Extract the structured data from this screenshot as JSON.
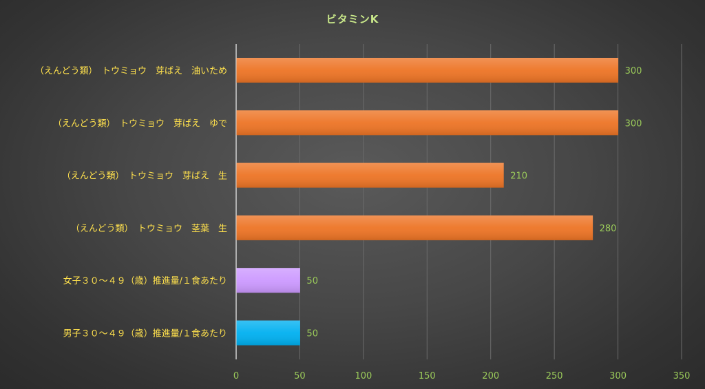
{
  "chart_data": {
    "type": "bar",
    "orientation": "horizontal",
    "title": "ビタミンK",
    "xlabel": "",
    "ylabel": "",
    "xlim": [
      0,
      350
    ],
    "x_ticks": [
      0,
      50,
      100,
      150,
      200,
      250,
      300,
      350
    ],
    "grid": true,
    "legend": "none",
    "data_labels": true,
    "categories": [
      "（えんどう類）　トウミョウ　芽ばえ　油いため",
      "（えんどう類）　トウミョウ　芽ばえ　ゆで",
      "（えんどう類）　トウミョウ　芽ばえ　生",
      "（えんどう類）　トウミョウ　茎葉　生",
      "女子３０～４９（歳）推進量/１食あたり",
      "男子３０～４９（歳）推進量/１食あたり"
    ],
    "values": [
      300,
      300,
      210,
      280,
      50,
      50
    ],
    "bar_colors": [
      "#ED7425",
      "#ED7425",
      "#ED7425",
      "#ED7425",
      "#CC99FF",
      "#00B0F0"
    ]
  },
  "colors": {
    "title": "#C9E88A",
    "category_label": "#FFE14D",
    "tick_label": "#9BCB5A",
    "data_label": "#9BCB5A",
    "grid": "#6C6C6C",
    "axis": "#D0D0D0"
  }
}
